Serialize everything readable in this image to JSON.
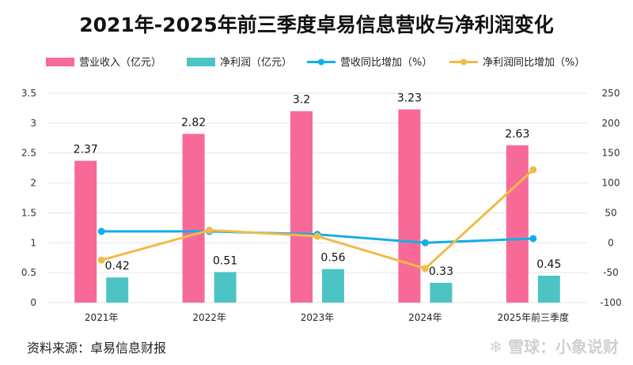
{
  "chart_data": {
    "type": "bar+line",
    "title": "2021年-2025年前三季度卓易信息营收与净利润变化",
    "categories": [
      "2021年",
      "2022年",
      "2023年",
      "2024年",
      "2025年前三季度"
    ],
    "series": [
      {
        "name": "营业收入（亿元）",
        "kind": "bar",
        "axis": "left",
        "color": "#f76a98",
        "values": [
          2.37,
          2.82,
          3.2,
          3.23,
          2.63
        ],
        "labels": [
          "2.37",
          "2.82",
          "3.2",
          "3.23",
          "2.63"
        ]
      },
      {
        "name": "净利润（亿元）",
        "kind": "bar",
        "axis": "left",
        "color": "#4dc4c4",
        "values": [
          0.42,
          0.51,
          0.56,
          0.33,
          0.45
        ],
        "labels": [
          "0.42",
          "0.51",
          "0.56",
          "0.33",
          "0.45"
        ]
      },
      {
        "name": "营收同比增加（%）",
        "kind": "line",
        "axis": "right",
        "color": "#12aee8",
        "values": [
          19,
          19,
          14,
          0,
          7
        ]
      },
      {
        "name": "净利润同比增加（%）",
        "kind": "line",
        "axis": "right",
        "color": "#f0bb48",
        "values": [
          -29,
          21,
          11,
          -43,
          122
        ]
      }
    ],
    "y_left": {
      "min": 0,
      "max": 3.5,
      "ticks": [
        "0",
        "0.5",
        "1",
        "1.5",
        "2",
        "2.5",
        "3",
        "3.5"
      ]
    },
    "y_right": {
      "min": -100,
      "max": 250,
      "ticks": [
        "-100",
        "-50",
        "0",
        "50",
        "100",
        "150",
        "200",
        "250"
      ]
    },
    "legend_position": "top",
    "grid": true
  },
  "source": "资料来源：卓易信息财报",
  "watermark": "❄ 雪球：小象说财"
}
